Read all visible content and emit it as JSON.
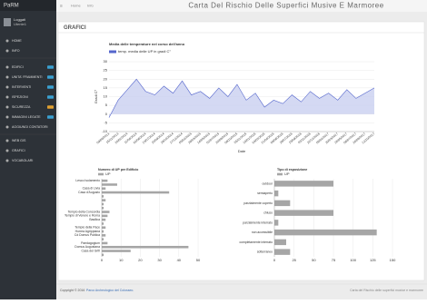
{
  "sidebar": {
    "logo": "PaRM",
    "user": "Loggati",
    "user_sub": "Utente1",
    "menu": [
      "HOME",
      "INFO",
      "EDIFICI",
      "UNITA' FRAMMENTI",
      "INTERVENTI",
      "ISPEZIONI",
      "SICUREZZA",
      "IMMAGINI LEGATE",
      "AGGIUNGI CONTATORI",
      "WEB GIS",
      "GRAFICI",
      "VOCABOLARI"
    ]
  },
  "topbar": {
    "links": [
      "Home",
      "Info"
    ],
    "title": "Carta Del Rischio Delle Superfici Musive E Marmoree"
  },
  "panel": {
    "title": "GRAFICI"
  },
  "chart_data": [
    {
      "type": "line",
      "title": "Media delle temperature nel corso dell'anno",
      "ylabel": "Gradi C°",
      "xlabel": "Date",
      "categories": [
        "09/09/2013",
        "15/11/2013",
        "20/02/2014",
        "11/04/2014",
        "02/06/2014",
        "23/07/2014",
        "10/09/2014",
        "28/10/2014",
        "17/12/2014",
        "05/02/2015",
        "26/03/2015",
        "14/05/2015",
        "02/07/2015",
        "20/08/2015",
        "08/10/2015",
        "26/11/2015",
        "14/01/2016",
        "03/03/2016",
        "21/04/2016",
        "09/06/2016",
        "28/07/2016",
        "15/09/2016",
        "03/11/2016",
        "22/12/2016",
        "09/02/2017",
        "30/03/2017",
        "18/05/2017",
        "06/07/2017",
        "24/08/2017",
        "12/10/2017"
      ],
      "series": [
        {
          "name": "temp. media delle UP in gradi C°",
          "color": "#5566cc",
          "values": [
            -2,
            8,
            14,
            20,
            13,
            11,
            16,
            12,
            19,
            11,
            13,
            9,
            15,
            10,
            17,
            8,
            12,
            4,
            8,
            6,
            11,
            7,
            13,
            9,
            12,
            8,
            14,
            9,
            12,
            15
          ]
        }
      ],
      "ylim": [
        -10,
        30
      ],
      "yticks": [
        -10,
        -5,
        0,
        5,
        10,
        15,
        20,
        25,
        30
      ],
      "grid": true
    },
    {
      "type": "bar",
      "horizontal": true,
      "title": "Numero di UP per Edificio",
      "categories": [
        "Lesco Isolamento",
        null,
        "Casa di Livia",
        "Casa d'Augusto",
        null,
        null,
        null,
        null,
        "Tempio della Concordia",
        "Tempio di Venere e Roma",
        "Basilica",
        null,
        "Tempio della Pace",
        "Horrea Agrippiana",
        "Cd Domus Publica",
        null,
        "Paedagogium",
        "Domus Augustana",
        "Casa dei Grifi",
        null
      ],
      "series": [
        {
          "name": "UP",
          "color": "#a6a6a6",
          "values": [
            3,
            8,
            2,
            35,
            1,
            2,
            1,
            1,
            4,
            3,
            2,
            1,
            2,
            1,
            2,
            1,
            3,
            45,
            15,
            1
          ]
        }
      ],
      "xlim": [
        0,
        50
      ],
      "xticks": [
        0,
        10,
        20,
        30,
        40,
        50
      ],
      "grid": true
    },
    {
      "type": "bar",
      "horizontal": true,
      "title": "Tipo di esposizione",
      "categories": [
        "outdoor",
        "semiaperto",
        "parzialmente coperto",
        "chiuso",
        "parzialmente interrato",
        "non accessibile",
        "completamente interrato",
        "sotterraneo"
      ],
      "series": [
        {
          "name": "UP",
          "color": "#a6a6a6",
          "values": [
            75,
            5,
            20,
            75,
            5,
            130,
            15,
            20
          ]
        }
      ],
      "xlim": [
        0,
        150
      ],
      "xticks": [
        0,
        25,
        50,
        75,
        100,
        125,
        150
      ],
      "grid": true
    }
  ],
  "footer": {
    "copyright": "Copyright © 2016",
    "link": "Parco Archeologico del Colosseo.",
    "right": "Carta del Rischio delle superfici musive e marmoree"
  }
}
